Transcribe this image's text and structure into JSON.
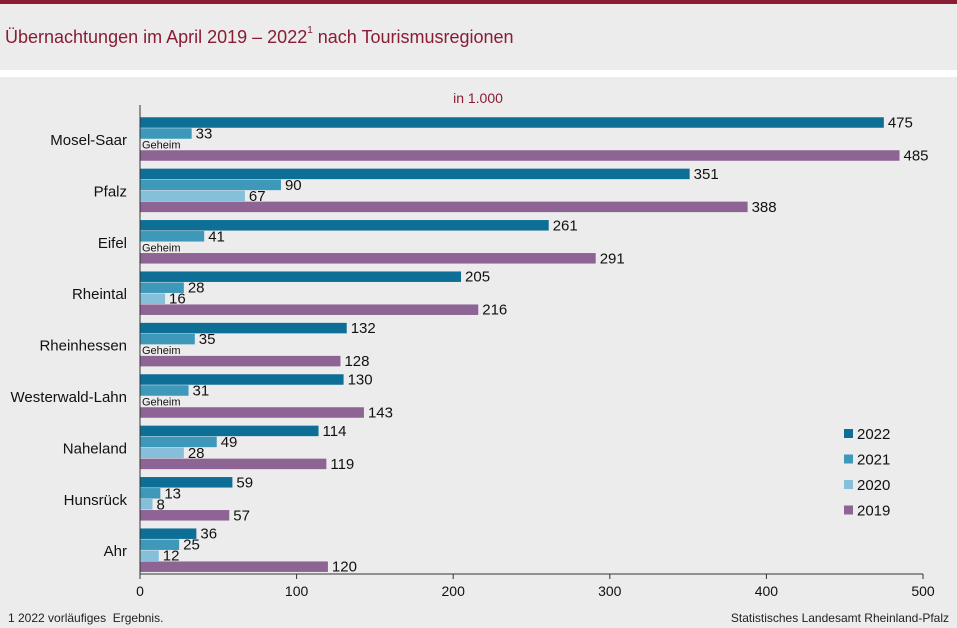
{
  "header": {
    "title": "Übernachtungen im April 2019 – 2022",
    "title_sup": "1",
    "title_suffix": " nach Tourismusregionen"
  },
  "footer": {
    "footnote": "1 2022 vorläufiges  Ergebnis.",
    "source": "Statistisches Landesamt Rheinland-Pfalz"
  },
  "colors": {
    "2022": "#0e6f96",
    "2021": "#3d98ba",
    "2020": "#86bfd9",
    "2019": "#8d6494",
    "accent": "#8a1c33"
  },
  "chart_data": {
    "type": "bar",
    "orientation": "horizontal",
    "subtitle": "in 1.000",
    "categories": [
      "Mosel-Saar",
      "Pfalz",
      "Eifel",
      "Rheintal",
      "Rheinhessen",
      "Westerwald-Lahn",
      "Naheland",
      "Hunsrück",
      "Ahr"
    ],
    "series": [
      {
        "name": "2022",
        "values": [
          475,
          351,
          261,
          205,
          132,
          130,
          114,
          59,
          36
        ]
      },
      {
        "name": "2021",
        "values": [
          33,
          90,
          41,
          28,
          35,
          31,
          49,
          13,
          25
        ]
      },
      {
        "name": "2020",
        "values": [
          null,
          67,
          null,
          16,
          null,
          null,
          28,
          8,
          12
        ]
      },
      {
        "name": "2019",
        "values": [
          485,
          388,
          291,
          216,
          128,
          143,
          119,
          57,
          120
        ]
      }
    ],
    "secret_label": "Geheim",
    "x_ticks": [
      0,
      100,
      200,
      300,
      400,
      500
    ],
    "xlim": [
      0,
      500
    ],
    "legend": [
      "2022",
      "2021",
      "2020",
      "2019"
    ],
    "legend_position": "bottom-right"
  }
}
